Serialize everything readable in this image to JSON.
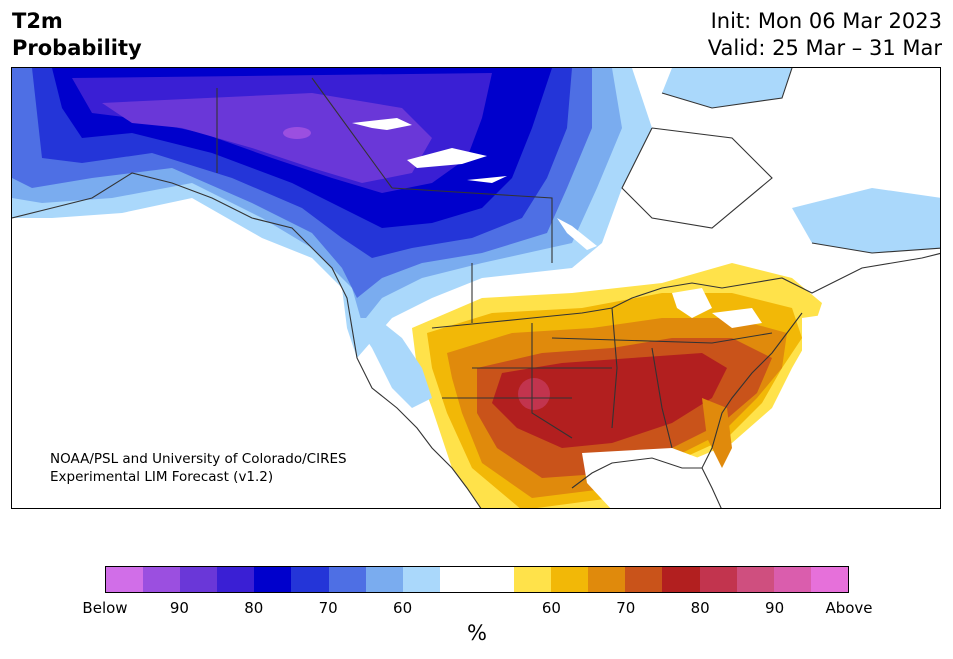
{
  "header": {
    "title_line1": "T2m",
    "title_line2": "Probability",
    "init": "Init: Mon 06 Mar 2023",
    "valid": "Valid: 25 Mar – 31 Mar"
  },
  "map": {
    "credit_line1": "NOAA/PSL and University of Colorado/CIRES",
    "credit_line2": "Experimental LIM Forecast (v1.2)",
    "region": "North America"
  },
  "colorbar": {
    "colors": [
      "#d16ee8",
      "#9b4fe0",
      "#6a37d8",
      "#3a1fd4",
      "#0000cc",
      "#2435d8",
      "#4e6fe4",
      "#7aacef",
      "#aad8fb",
      "#ffffff",
      "#ffffff",
      "#ffe24a",
      "#f2b807",
      "#e08a0c",
      "#c9531a",
      "#b21f1f",
      "#c2344e",
      "#cf4f7f",
      "#da5dad",
      "#e670da"
    ],
    "ticks": [
      "Below",
      "90",
      "80",
      "70",
      "60",
      "60",
      "70",
      "80",
      "90",
      "Above"
    ],
    "unit": "%"
  }
}
